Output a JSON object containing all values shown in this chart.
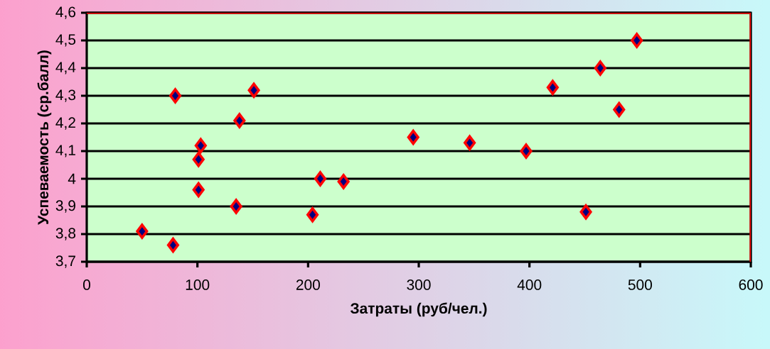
{
  "chart_data": {
    "type": "scatter",
    "xlabel": "Затраты (руб/чел.)",
    "ylabel": "Успеваемость (ср.балл)",
    "x": [
      50,
      78,
      80,
      103,
      101,
      101,
      135,
      138,
      151,
      204,
      211,
      232,
      295,
      346,
      397,
      421,
      451,
      464,
      481,
      497
    ],
    "values": [
      3.81,
      3.76,
      4.3,
      4.12,
      4.07,
      3.96,
      3.9,
      4.21,
      4.32,
      3.87,
      4.0,
      3.99,
      4.15,
      4.13,
      4.1,
      4.33,
      3.88,
      4.4,
      4.25,
      4.5
    ],
    "color": "#ff0000",
    "marker": "diamond",
    "grid": "y",
    "xlim": [
      0,
      600
    ],
    "xticks": [
      0,
      100,
      200,
      300,
      400,
      500,
      600
    ],
    "ylim": [
      3.7,
      4.6
    ],
    "yticks": [
      {
        "value": 3.7,
        "label": "3,7"
      },
      {
        "value": 3.8,
        "label": "3,8"
      },
      {
        "value": 3.9,
        "label": "3,9"
      },
      4,
      {
        "value": 4.1,
        "label": "4,1"
      },
      {
        "value": 4.2,
        "label": "4,2"
      },
      {
        "value": 4.3,
        "label": "4,3"
      },
      {
        "value": 4.4,
        "label": "4,4"
      },
      {
        "value": 4.5,
        "label": "4,5"
      },
      {
        "value": 4.6,
        "label": "4,6"
      }
    ]
  }
}
